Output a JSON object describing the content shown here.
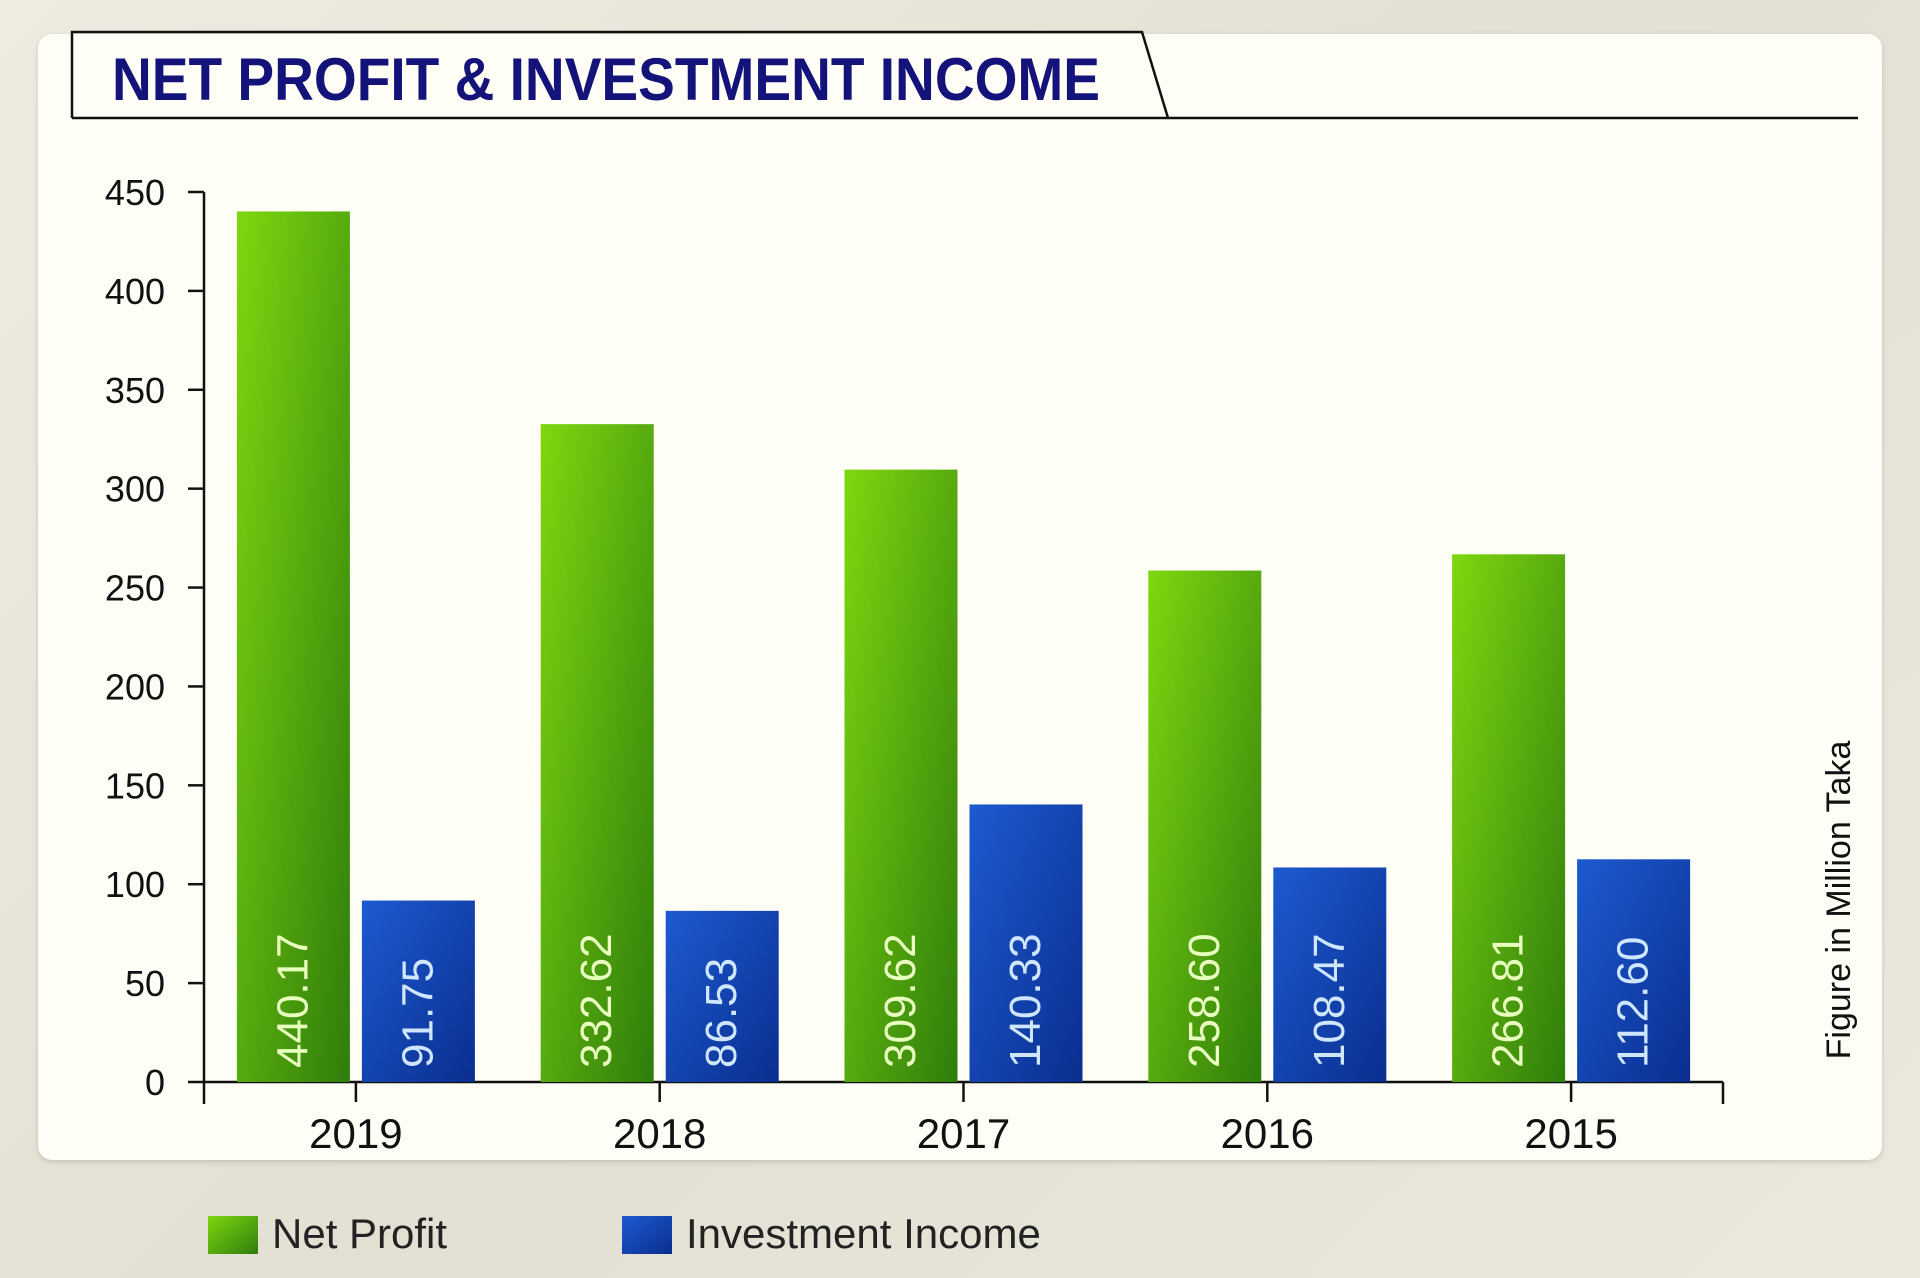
{
  "chart_data": {
    "type": "bar",
    "title": "NET PROFIT & INVESTMENT INCOME",
    "categories": [
      "2019",
      "2018",
      "2017",
      "2016",
      "2015"
    ],
    "series": [
      {
        "name": "Net Profit",
        "values": [
          440.17,
          332.62,
          309.62,
          258.6,
          266.81
        ],
        "color": "#5cb80e"
      },
      {
        "name": "Investment Income",
        "values": [
          91.75,
          86.53,
          140.33,
          108.47,
          112.6
        ],
        "color": "#1443b0"
      }
    ],
    "data_labels": {
      "Net Profit": [
        "440.17",
        "332.62",
        "309.62",
        "258.60",
        "266.81"
      ],
      "Investment Income": [
        "91.75",
        "86.53",
        "140.33",
        "108.47",
        "112.60"
      ]
    },
    "y_ticks": [
      "0",
      "50",
      "100",
      "150",
      "200",
      "250",
      "300",
      "350",
      "400",
      "450"
    ],
    "ylim": [
      0,
      450
    ],
    "ylabel": "Figure in Million Taka",
    "xlabel": "",
    "legend_position": "bottom-left",
    "grid": false,
    "title_color": "#14137a"
  }
}
